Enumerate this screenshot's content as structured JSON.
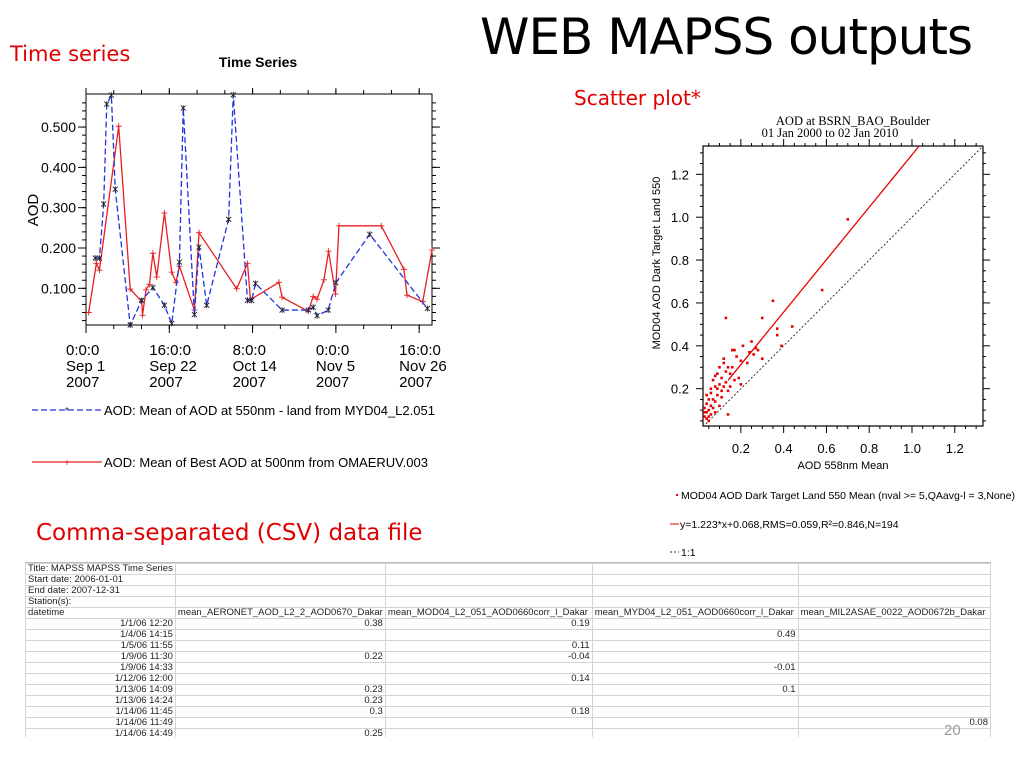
{
  "slide": {
    "title": "WEB MAPSS outputs",
    "time_series_heading": "Time series",
    "scatter_heading": "Scatter plot*",
    "csv_heading": "Comma-separated (CSV) data file",
    "page_number": "20"
  },
  "chart_data": [
    {
      "type": "line",
      "title": "Time Series",
      "xlabel": "",
      "ylabel": "AOD",
      "x_unit": "days since 0:0:0 Sep 1 2007",
      "xlim": [
        0,
        90
      ],
      "ylim": [
        0.009,
        0.582
      ],
      "yticks": [
        0.1,
        0.2,
        0.3,
        0.4,
        0.5
      ],
      "ytick_labels": [
        "0.100",
        "0.200",
        "0.300",
        "0.400",
        "0.500"
      ],
      "xticks": [
        0,
        21.667,
        43.333,
        65,
        86.667
      ],
      "xtick_labels": [
        [
          "0:0:0",
          "Sep 1",
          "2007"
        ],
        [
          "16:0:0",
          "Sep 22",
          "2007"
        ],
        [
          "8:0:0",
          "Oct 14",
          "2007"
        ],
        [
          "0:0:0",
          "Nov 5",
          "2007"
        ],
        [
          "16:0:0",
          "Nov 26",
          "2007"
        ]
      ],
      "series": [
        {
          "name": "AOD: Mean of AOD at 550nm - land from MYD04_L2.051",
          "color": "#2233dd",
          "style": "dashed",
          "marker": "asterisk",
          "x": [
            2.4,
            3.5,
            4.6,
            5.4,
            6.6,
            7.6,
            11.5,
            14.5,
            17.4,
            20.4,
            22.3,
            24.3,
            25.3,
            28.2,
            29.4,
            31.4,
            37.1,
            38.3,
            42.0,
            43.1,
            44.1,
            51.0,
            57.8,
            59.1,
            60.1,
            63.0,
            65.0,
            73.8,
            88.8
          ],
          "y": [
            0.175,
            0.175,
            0.309,
            0.557,
            0.579,
            0.346,
            0.009,
            0.07,
            0.102,
            0.058,
            0.013,
            0.165,
            0.547,
            0.035,
            0.202,
            0.058,
            0.271,
            0.58,
            0.07,
            0.07,
            0.112,
            0.046,
            0.046,
            0.053,
            0.032,
            0.046,
            0.114,
            0.234,
            0.05
          ]
        },
        {
          "name": "AOD: Mean of Best AOD at 500nm from OMAERUV.003",
          "color": "#e82020",
          "style": "solid",
          "marker": "plus",
          "x": [
            0.7,
            2.7,
            3.5,
            8.5,
            11.5,
            14.5,
            14.7,
            15.6,
            16.5,
            17.4,
            18.4,
            20.4,
            22.3,
            23.4,
            24.3,
            28.2,
            29.4,
            39.2,
            42.0,
            42.8,
            50.2,
            51.0,
            57.8,
            59.1,
            60.1,
            61.9,
            63.1,
            64.9,
            65.8,
            76.8,
            82.7,
            83.5,
            87.6,
            90.0
          ],
          "y": [
            0.04,
            0.162,
            0.145,
            0.502,
            0.098,
            0.067,
            0.033,
            0.096,
            0.11,
            0.187,
            0.128,
            0.287,
            0.14,
            0.115,
            0.155,
            0.046,
            0.238,
            0.099,
            0.162,
            0.072,
            0.115,
            0.078,
            0.043,
            0.08,
            0.073,
            0.121,
            0.192,
            0.086,
            0.255,
            0.255,
            0.147,
            0.083,
            0.067,
            0.195
          ]
        }
      ],
      "legend_placement": "bottom"
    },
    {
      "type": "scatter",
      "title": "AOD at BSRN_BAO_Boulder",
      "subtitle": "01 Jan 2000 to 02 Jan 2010",
      "xlabel": "AOD 558nm Mean",
      "ylabel": "MOD04 AOD Dark Target Land 550",
      "xlim": [
        0.023,
        1.332
      ],
      "ylim": [
        0.026,
        1.332
      ],
      "ticks": [
        0.2,
        0.4,
        0.6,
        0.8,
        1.0,
        1.2
      ],
      "tick_labels": [
        "0.2",
        "0.4",
        "0.6",
        "0.8",
        "1.0",
        "1.2"
      ],
      "points_color": "#e80000",
      "points": [
        [
          0.7,
          0.99
        ],
        [
          0.58,
          0.66
        ],
        [
          0.35,
          0.61
        ],
        [
          0.13,
          0.53
        ],
        [
          0.3,
          0.53
        ],
        [
          0.37,
          0.48
        ],
        [
          0.44,
          0.49
        ],
        [
          0.37,
          0.45
        ],
        [
          0.39,
          0.4
        ],
        [
          0.3,
          0.34
        ],
        [
          0.25,
          0.42
        ],
        [
          0.27,
          0.39
        ],
        [
          0.28,
          0.38
        ],
        [
          0.26,
          0.36
        ],
        [
          0.21,
          0.4
        ],
        [
          0.16,
          0.38
        ],
        [
          0.17,
          0.38
        ],
        [
          0.18,
          0.35
        ],
        [
          0.14,
          0.08
        ],
        [
          0.2,
          0.22
        ],
        [
          0.19,
          0.25
        ],
        [
          0.12,
          0.34
        ],
        [
          0.12,
          0.32
        ],
        [
          0.1,
          0.3
        ],
        [
          0.14,
          0.3
        ],
        [
          0.15,
          0.27
        ],
        [
          0.13,
          0.28
        ],
        [
          0.11,
          0.25
        ],
        [
          0.09,
          0.27
        ],
        [
          0.1,
          0.22
        ],
        [
          0.08,
          0.21
        ],
        [
          0.12,
          0.21
        ],
        [
          0.14,
          0.19
        ],
        [
          0.07,
          0.24
        ],
        [
          0.06,
          0.18
        ],
        [
          0.09,
          0.17
        ],
        [
          0.11,
          0.16
        ],
        [
          0.08,
          0.14
        ],
        [
          0.05,
          0.15
        ],
        [
          0.06,
          0.12
        ],
        [
          0.07,
          0.11
        ],
        [
          0.1,
          0.12
        ],
        [
          0.04,
          0.13
        ],
        [
          0.05,
          0.1
        ],
        [
          0.04,
          0.09
        ],
        [
          0.06,
          0.08
        ],
        [
          0.03,
          0.07
        ],
        [
          0.04,
          0.06
        ],
        [
          0.05,
          0.05
        ],
        [
          0.03,
          0.11
        ],
        [
          0.08,
          0.09
        ],
        [
          0.09,
          0.2
        ],
        [
          0.13,
          0.23
        ],
        [
          0.16,
          0.3
        ],
        [
          0.17,
          0.24
        ],
        [
          0.06,
          0.2
        ],
        [
          0.04,
          0.17
        ],
        [
          0.03,
          0.09
        ],
        [
          0.05,
          0.07
        ],
        [
          0.07,
          0.15
        ],
        [
          0.11,
          0.19
        ],
        [
          0.08,
          0.26
        ],
        [
          0.15,
          0.21
        ],
        [
          0.2,
          0.33
        ],
        [
          0.23,
          0.32
        ],
        [
          0.24,
          0.37
        ]
      ],
      "fit_line": {
        "slope": 1.223,
        "intercept": 0.068,
        "x_range": [
          0.14,
          1.033
        ],
        "color": "#e80000"
      },
      "one_to_one": {
        "x_range": [
          0.023,
          1.332
        ],
        "color": "#333333"
      },
      "legend": [
        "MOD04 AOD Dark Target Land 550 Mean (nval >= 5,QAavg-l = 3,None)",
        "y=1.223*x+0.068,RMS=0.059,R²=0.846,N=194",
        "1:1"
      ],
      "legend_placement": "bottom"
    }
  ],
  "csv": {
    "meta_rows": [
      "Title: MAPSS MAPSS Time Series",
      "Start date: 2006-01-01",
      "End date: 2007-12-31",
      "Station(s):"
    ],
    "headers": [
      "datetime",
      "mean_AERONET_AOD_L2_2_AOD0670_Dakar",
      "mean_MOD04_L2_051_AOD0660corr_l_Dakar",
      "mean_MYD04_L2_051_AOD0660corr_l_Dakar",
      "mean_MIL2ASAE_0022_AOD0672b_Dakar"
    ],
    "rows": [
      [
        "1/1/06 12:20",
        "0.38",
        "0.19",
        "",
        ""
      ],
      [
        "1/4/06 14:15",
        "",
        "",
        "0.49",
        ""
      ],
      [
        "1/5/06 11:55",
        "",
        "0.11",
        "",
        ""
      ],
      [
        "1/9/06 11:30",
        "0.22",
        "-0.04",
        "",
        ""
      ],
      [
        "1/9/06 14:33",
        "",
        "",
        "-0.01",
        ""
      ],
      [
        "1/12/06 12:00",
        "",
        "0.14",
        "",
        ""
      ],
      [
        "1/13/06 14:09",
        "0.23",
        "",
        "0.1",
        ""
      ],
      [
        "1/13/06 14:24",
        "0.23",
        "",
        "",
        ""
      ],
      [
        "1/14/06 11:45",
        "0.3",
        "0.18",
        "",
        ""
      ],
      [
        "1/14/06 11:49",
        "",
        "",
        "",
        "0.08"
      ],
      [
        "1/14/06 14:49",
        "0.25",
        "",
        "",
        ""
      ]
    ]
  }
}
